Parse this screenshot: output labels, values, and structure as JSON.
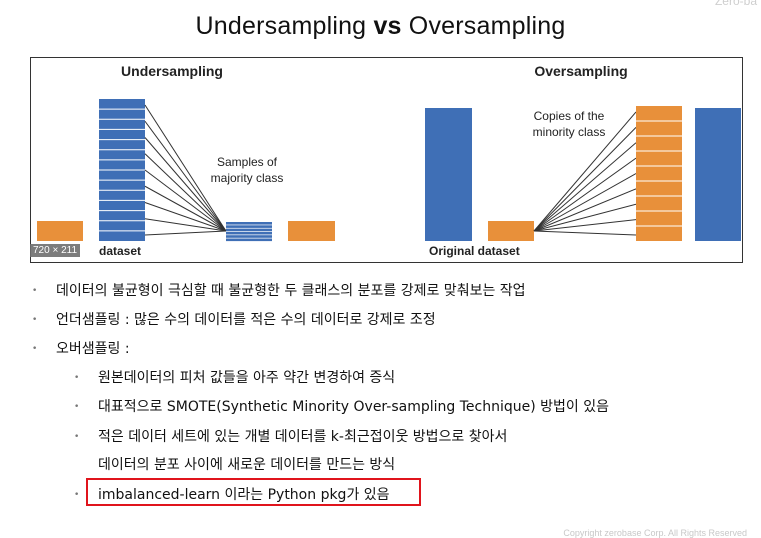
{
  "title": {
    "part1": "Undersampling ",
    "bold": "vs",
    "part2": " Oversampling"
  },
  "corner_text": "Zero-ba",
  "figure": {
    "left_heading": "Undersampling",
    "right_heading": "Oversampling",
    "samples_label": [
      "Samples of",
      "majority class"
    ],
    "copies_label": [
      "Copies of the",
      "minority class"
    ],
    "left_caption": "dataset",
    "right_caption": "Original dataset",
    "badge": "720 × 211",
    "colors": {
      "blue": "#3f6fb6",
      "orange": "#e8903a",
      "line": "#333333"
    }
  },
  "bullets": [
    {
      "level": 1,
      "text": "데이터의 불균형이 극심할 때 불균형한 두 클래스의 분포를 강제로 맞춰보는 작업"
    },
    {
      "level": 1,
      "text": "언더샘플링 : 많은 수의 데이터를 적은 수의 데이터로 강제로 조정"
    },
    {
      "level": 1,
      "text": "오버샘플링 :"
    },
    {
      "level": 2,
      "text": "원본데이터의 피처 값들을 아주 약간 변경하여 증식"
    },
    {
      "level": 2,
      "text": "대표적으로 SMOTE(Synthetic Minority Over-sampling Technique) 방법이 있음"
    },
    {
      "level": 2,
      "text": "적은 데이터 세트에 있는 개별 데이터를 k-최근접이웃 방법으로 찾아서"
    },
    {
      "level": 2,
      "continuation": true,
      "text": "데이터의 분포 사이에 새로운 데이터를 만드는 방식"
    },
    {
      "level": 2,
      "text": "imbalanced-learn 이라는 Python pkg가 있음"
    }
  ],
  "copyright": "Copyright zerobase Corp. All Rights Reserved"
}
